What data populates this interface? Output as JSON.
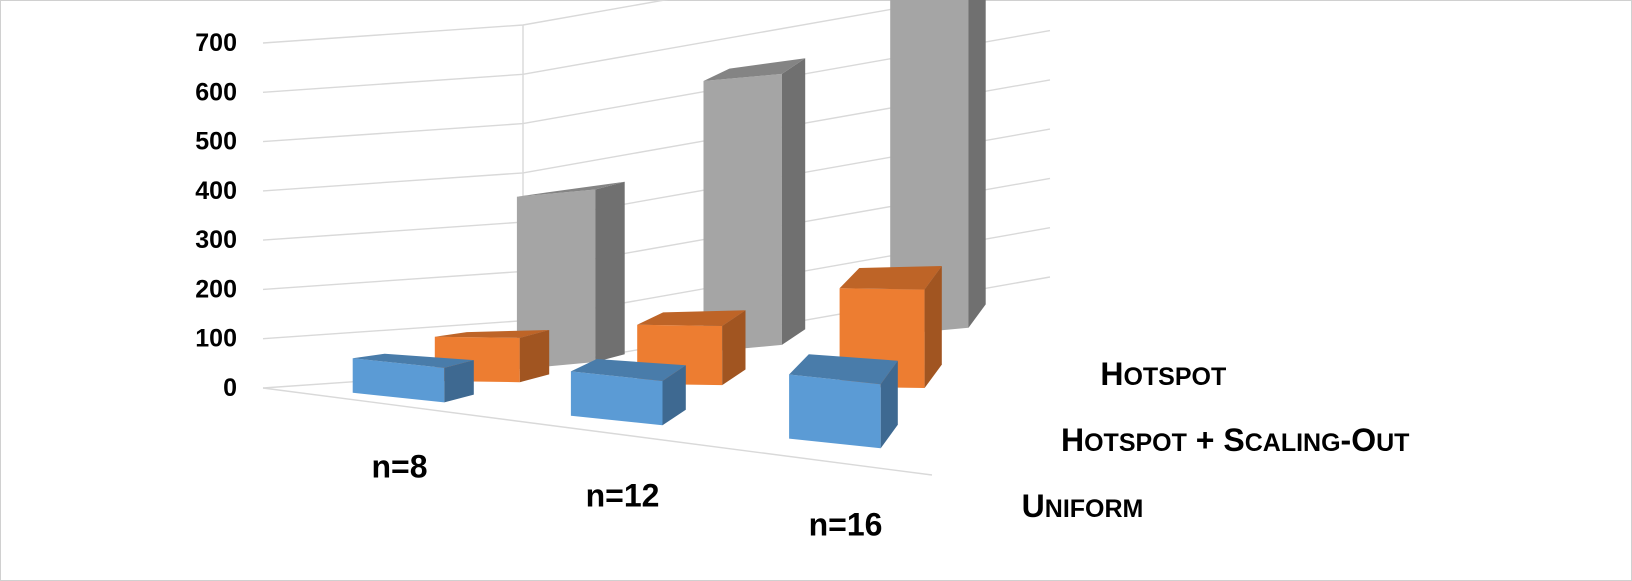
{
  "chart_data": {
    "type": "bar",
    "style": "3d-column",
    "categories": [
      "n=8",
      "n=12",
      "n=16"
    ],
    "series": [
      {
        "name": "Uniform",
        "name_display": [
          "U",
          "NIFORM"
        ],
        "color": "#5b9bd5",
        "values": [
          70,
          90,
          130
        ]
      },
      {
        "name": "Hotspot + Scaling-Out",
        "name_display": [
          "H",
          "OTSPOT",
          " + ",
          "S",
          "CALING",
          "-O",
          "UT"
        ],
        "color": "#ed7d31",
        "values": [
          90,
          120,
          200
        ]
      },
      {
        "name": "Hotspot",
        "name_display": [
          "H",
          "OTSPOT"
        ],
        "color": "#a5a5a5",
        "values": [
          350,
          550,
          700
        ]
      }
    ],
    "yticks": [
      "0",
      "100",
      "200",
      "300",
      "400",
      "500",
      "600",
      "700"
    ],
    "ylim": [
      0,
      700
    ],
    "grid": true,
    "legend": "series labels on right depth axis"
  }
}
